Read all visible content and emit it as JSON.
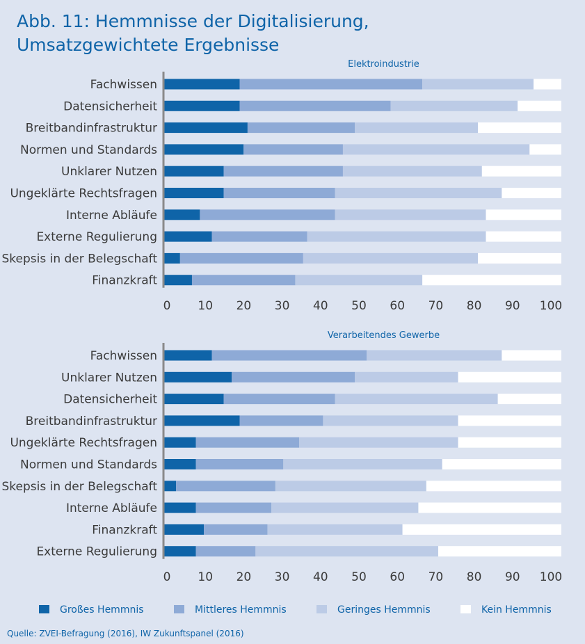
{
  "header": {
    "title_line1": "Abb. 11: Hemmnisse der Digitalisierung,",
    "title_line2": "Umsatzgewichtete Ergebnisse"
  },
  "source": "Quelle: ZVEI-Befragung (2016), IW Zukunftspanel (2016)",
  "colors": {
    "gross": "#0f64a8",
    "mittel": "#8eaad6",
    "gering": "#bccbe6",
    "kein": "#ffffff",
    "text": "#3b3b3b",
    "accent": "#0f64a8",
    "background": "#dde4f1"
  },
  "chart_data": [
    {
      "type": "bar",
      "orientation": "horizontal",
      "stacked": true,
      "title": "Elektroindustrie",
      "categories": [
        "Fachwissen",
        "Datensicherheit",
        "Breitbandinfrastruktur",
        "Normen und Standards",
        "Unklarer Nutzen",
        "Ungeklärte Rechtsfragen",
        "Interne Abläufe",
        "Externe Regulierung",
        "Skepsis in der Belegschaft",
        "Finanzkraft"
      ],
      "series": [
        {
          "name": "Großes Hemmnis",
          "values": [
            19,
            19,
            21,
            20,
            15,
            15,
            9,
            12,
            4,
            7
          ]
        },
        {
          "name": "Mittleres Hemmnis",
          "values": [
            46,
            38,
            27,
            25,
            30,
            28,
            34,
            24,
            31,
            26
          ]
        },
        {
          "name": "Geringes Hemmnis",
          "values": [
            28,
            32,
            31,
            47,
            35,
            42,
            38,
            45,
            44,
            32
          ]
        },
        {
          "name": "Kein Hemmnis",
          "values": [
            7,
            11,
            21,
            8,
            20,
            15,
            19,
            19,
            21,
            35
          ]
        }
      ],
      "xlim": [
        0,
        100
      ],
      "xticks": [
        "0",
        "10",
        "20",
        "30",
        "40",
        "50",
        "60",
        "70",
        "80",
        "90",
        "100"
      ]
    },
    {
      "type": "bar",
      "orientation": "horizontal",
      "stacked": true,
      "title": "Verarbeitendes Gewerbe",
      "categories": [
        "Fachwissen",
        "Unklarer Nutzen",
        "Datensicherheit",
        "Breitbandinfrastruktur",
        "Ungeklärte Rechtsfragen",
        "Normen und Standards",
        "Skepsis in der Belegschaft",
        "Interne Abläufe",
        "Finanzkraft",
        "Externe Regulierung"
      ],
      "series": [
        {
          "name": "Großes Hemmnis",
          "values": [
            12,
            17,
            15,
            19,
            8,
            8,
            3,
            8,
            10,
            8
          ]
        },
        {
          "name": "Mittleres Hemmnis",
          "values": [
            39,
            31,
            28,
            21,
            26,
            22,
            25,
            19,
            16,
            15
          ]
        },
        {
          "name": "Geringes Hemmnis",
          "values": [
            34,
            26,
            41,
            34,
            40,
            40,
            38,
            37,
            34,
            46
          ]
        },
        {
          "name": "Kein Hemmnis",
          "values": [
            15,
            26,
            16,
            26,
            26,
            30,
            34,
            36,
            40,
            31
          ]
        }
      ],
      "xlim": [
        0,
        100
      ],
      "xticks": [
        "0",
        "10",
        "20",
        "30",
        "40",
        "50",
        "60",
        "70",
        "80",
        "90",
        "100"
      ]
    }
  ],
  "legend": [
    "Großes Hemmnis",
    "Mittleres Hemmnis",
    "Geringes Hemmnis",
    "Kein Hemmnis"
  ]
}
